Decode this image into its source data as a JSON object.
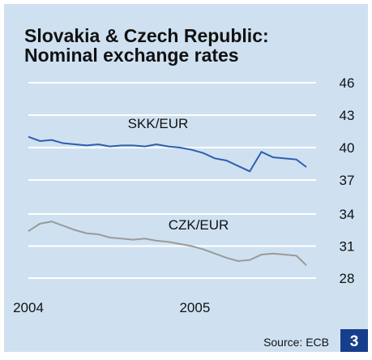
{
  "title": "Slovakia & Czech Republic: Nominal exchange rates",
  "chart_data": [
    {
      "type": "line",
      "x": [
        2004.0,
        2004.07,
        2004.14,
        2004.21,
        2004.28,
        2004.35,
        2004.42,
        2004.49,
        2004.56,
        2004.63,
        2004.7,
        2004.77,
        2004.84,
        2004.91,
        2004.98,
        2005.05,
        2005.12,
        2005.19,
        2005.26,
        2005.33,
        2005.4,
        2005.47,
        2005.54,
        2005.61,
        2005.67
      ],
      "series": [
        {
          "name": "SKK/EUR",
          "color": "#2e5eb0",
          "values": [
            41.0,
            40.6,
            40.7,
            40.4,
            40.3,
            40.2,
            40.3,
            40.1,
            40.2,
            40.2,
            40.1,
            40.3,
            40.1,
            40.0,
            39.8,
            39.5,
            39.0,
            38.8,
            38.3,
            37.8,
            39.6,
            39.1,
            39.0,
            38.9,
            38.2
          ]
        }
      ],
      "xlim": [
        2004,
        2005.67
      ],
      "ylim": [
        37,
        46
      ],
      "yticks": [
        46,
        43,
        40,
        37
      ],
      "grid": true
    },
    {
      "type": "line",
      "x": [
        2004.0,
        2004.07,
        2004.14,
        2004.21,
        2004.28,
        2004.35,
        2004.42,
        2004.49,
        2004.56,
        2004.63,
        2004.7,
        2004.77,
        2004.84,
        2004.91,
        2004.98,
        2005.05,
        2005.12,
        2005.19,
        2005.26,
        2005.33,
        2005.4,
        2005.47,
        2005.54,
        2005.61,
        2005.67
      ],
      "series": [
        {
          "name": "CZK/EUR",
          "color": "#9a9a9a",
          "values": [
            32.4,
            33.1,
            33.3,
            32.9,
            32.5,
            32.2,
            32.1,
            31.8,
            31.7,
            31.6,
            31.7,
            31.5,
            31.4,
            31.2,
            31.0,
            30.7,
            30.3,
            29.9,
            29.6,
            29.7,
            30.2,
            30.3,
            30.2,
            30.1,
            29.2
          ]
        }
      ],
      "xlim": [
        2004,
        2005.67
      ],
      "ylim": [
        28,
        34
      ],
      "yticks": [
        34,
        31,
        28
      ],
      "xticks": [
        2004,
        2005
      ],
      "grid": true
    }
  ],
  "source": "Source: ECB",
  "page_number": "3"
}
